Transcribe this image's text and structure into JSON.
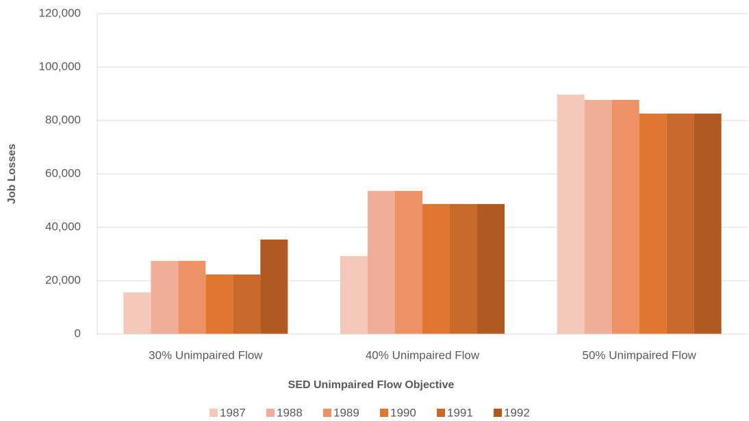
{
  "chart_data": {
    "type": "bar",
    "x_label": "SED Unimpaired Flow Objective",
    "y_label": "Job Losses",
    "categories": [
      "30% Unimpaired Flow",
      "40% Unimpaired Flow",
      "50% Unimpaired Flow"
    ],
    "series": [
      {
        "name": "1987",
        "color": "#f4c9b9",
        "values": [
          15600,
          29200,
          89700
        ]
      },
      {
        "name": "1988",
        "color": "#f0ae97",
        "values": [
          27400,
          53600,
          87700
        ]
      },
      {
        "name": "1989",
        "color": "#ec9265",
        "values": [
          27400,
          53600,
          87700
        ]
      },
      {
        "name": "1990",
        "color": "#e07730",
        "values": [
          22300,
          48700,
          82600
        ]
      },
      {
        "name": "1991",
        "color": "#c96a2a",
        "values": [
          22300,
          48700,
          82600
        ]
      },
      {
        "name": "1992",
        "color": "#b05a22",
        "values": [
          35400,
          48700,
          82600
        ]
      }
    ],
    "ylim": [
      0,
      120000
    ],
    "yticks": [
      0,
      {
        "value": 20000,
        "label": "20,000"
      },
      {
        "value": 40000,
        "label": "40,000"
      },
      {
        "value": 60000,
        "label": "60,000"
      },
      {
        "value": 80000,
        "label": "80,000"
      },
      {
        "value": 100000,
        "label": "100,000"
      },
      {
        "value": 120000,
        "label": "120,000"
      }
    ],
    "grid": true,
    "legend": "bottom"
  }
}
